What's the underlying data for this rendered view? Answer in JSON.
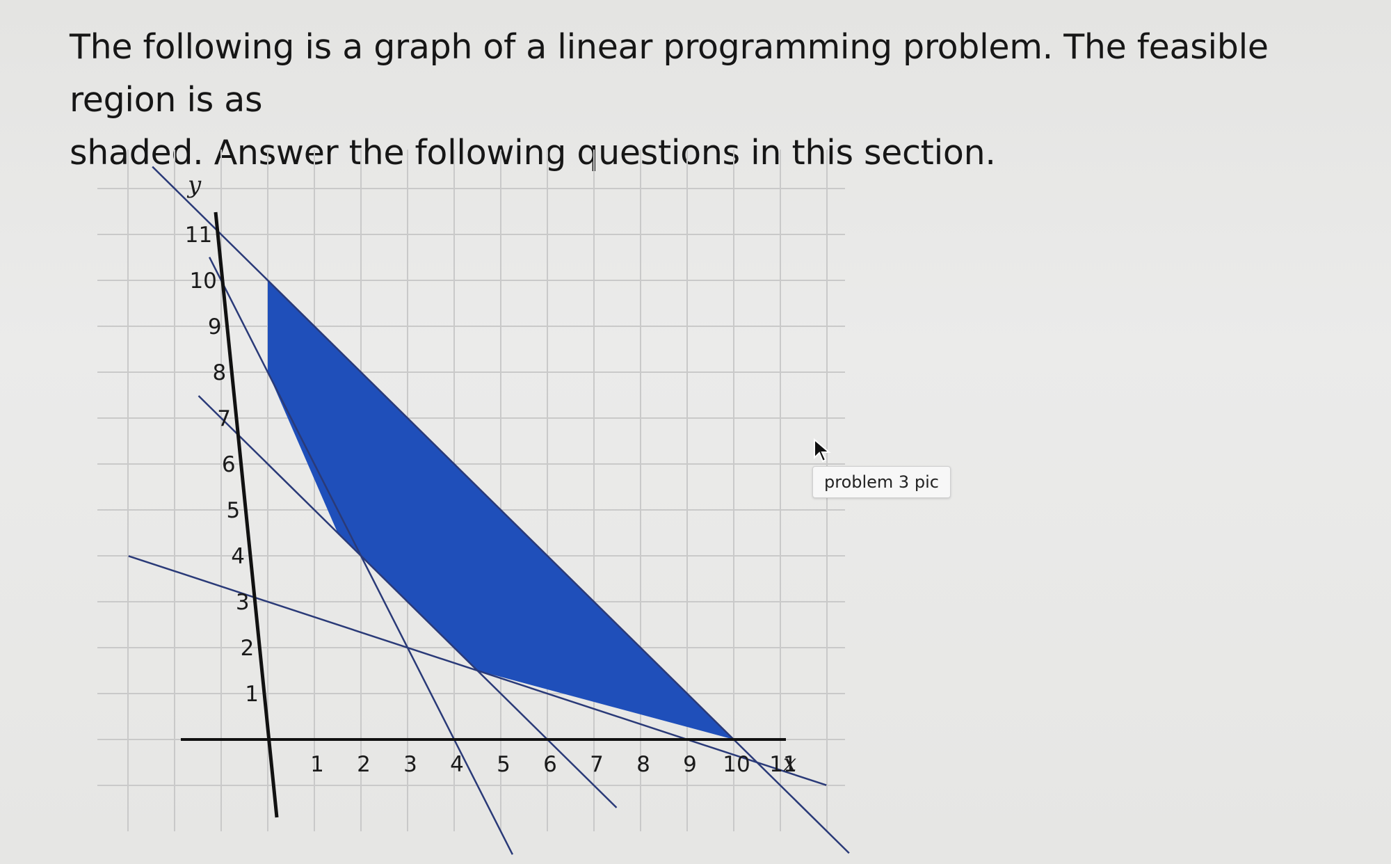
{
  "question": {
    "line1": "The following is a graph of a linear programming problem. The feasible region is as",
    "line2": "shaded. Answer the following questions in this section."
  },
  "tooltip": {
    "text": "problem 3 pic"
  },
  "chart_data": {
    "type": "line",
    "xlabel": "x",
    "ylabel": "y",
    "x_ticks": [
      "1",
      "2",
      "3",
      "4",
      "5",
      "6",
      "7",
      "8",
      "9",
      "10",
      "11"
    ],
    "y_ticks": [
      "1",
      "2",
      "3",
      "4",
      "5",
      "6",
      "7",
      "8",
      "9",
      "10",
      "11"
    ],
    "xlim": [
      0,
      11
    ],
    "ylim": [
      0,
      11
    ],
    "grid": true,
    "lines": [
      {
        "points": [
          [
            0,
            10
          ],
          [
            10,
            0
          ]
        ]
      },
      {
        "points": [
          [
            0,
            8
          ],
          [
            4,
            0
          ]
        ]
      },
      {
        "points": [
          [
            0,
            6
          ],
          [
            6,
            0
          ]
        ]
      },
      {
        "points": [
          [
            0,
            3
          ],
          [
            9,
            0
          ]
        ]
      }
    ],
    "feasible_region": {
      "vertices": [
        [
          0,
          10
        ],
        [
          10,
          0
        ],
        [
          4.5,
          1.5
        ],
        [
          1.5,
          4.5
        ],
        [
          0,
          8
        ]
      ],
      "color": "#1f4fba"
    },
    "line_color": "#2a3a78"
  }
}
